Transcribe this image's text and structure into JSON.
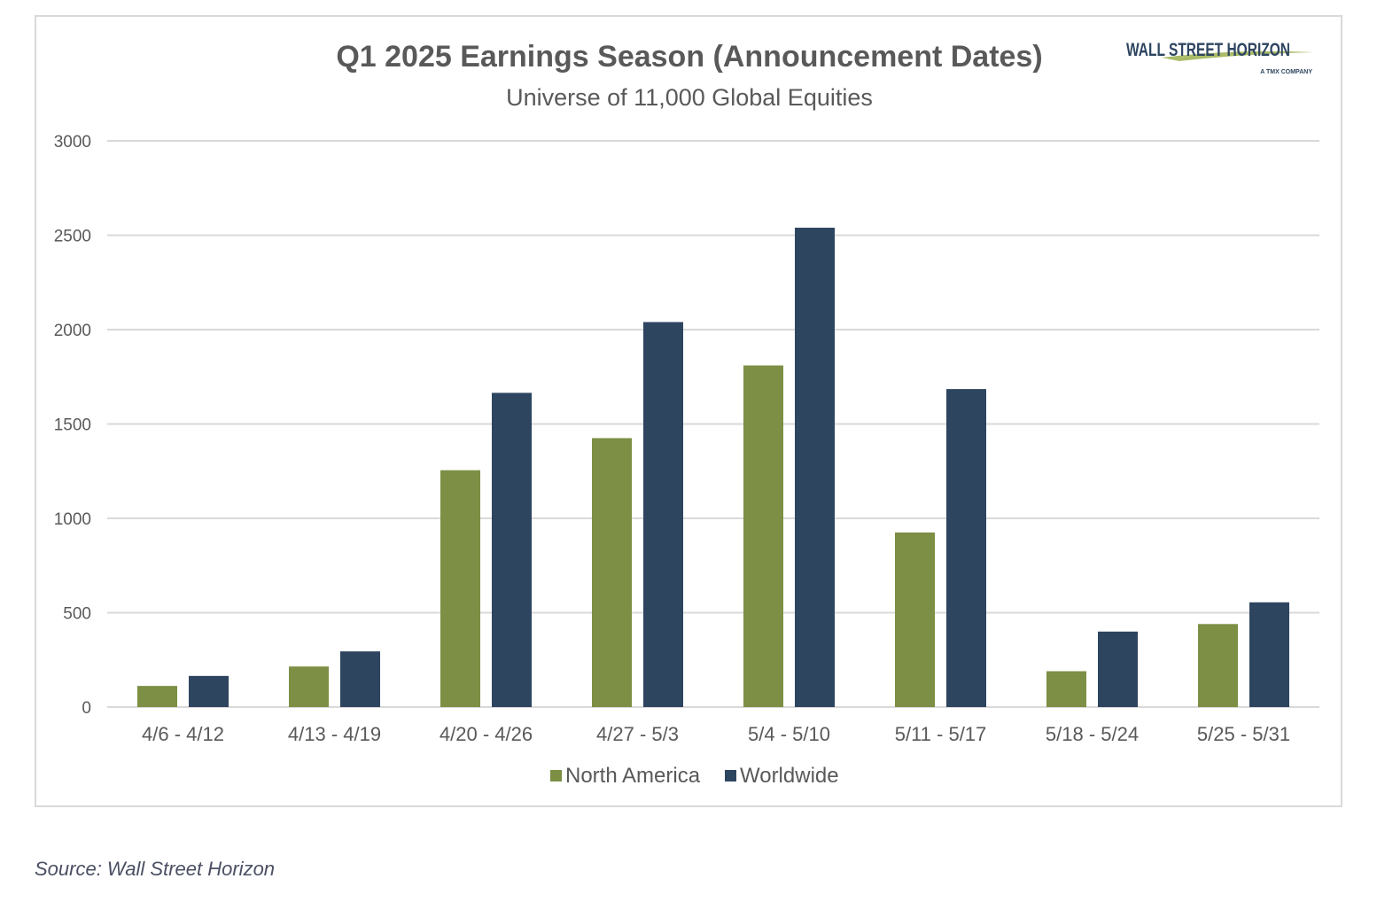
{
  "source": "Source: Wall Street Horizon",
  "logo": {
    "line1": "WALL STREET HORIZON",
    "line2": "A TMX COMPANY",
    "color": "#2e4560",
    "accent": "#7c8f44"
  },
  "colors": {
    "north_america": "#7c8f44",
    "worldwide": "#2e4560",
    "grid": "#d9d9d9",
    "text": "#595959"
  },
  "chart_data": {
    "type": "bar",
    "title": "Q1 2025 Earnings Season (Announcement Dates)",
    "subtitle": "Universe of 11,000 Global Equities",
    "xlabel": "",
    "ylabel": "",
    "ylim": [
      0,
      3000
    ],
    "yticks": [
      0,
      500,
      1000,
      1500,
      2000,
      2500,
      3000
    ],
    "grid": true,
    "legend_position": "bottom",
    "categories": [
      "4/6 - 4/12",
      "4/13 - 4/19",
      "4/20 - 4/26",
      "4/27 - 5/3",
      "5/4 - 5/10",
      "5/11 - 5/17",
      "5/18 - 5/24",
      "5/25 - 5/31"
    ],
    "series": [
      {
        "name": "North America",
        "color": "#7c8f44",
        "values": [
          112,
          215,
          1255,
          1425,
          1810,
          925,
          190,
          440
        ]
      },
      {
        "name": "Worldwide",
        "color": "#2e4560",
        "values": [
          165,
          295,
          1665,
          2040,
          2540,
          1685,
          400,
          555
        ]
      }
    ]
  }
}
